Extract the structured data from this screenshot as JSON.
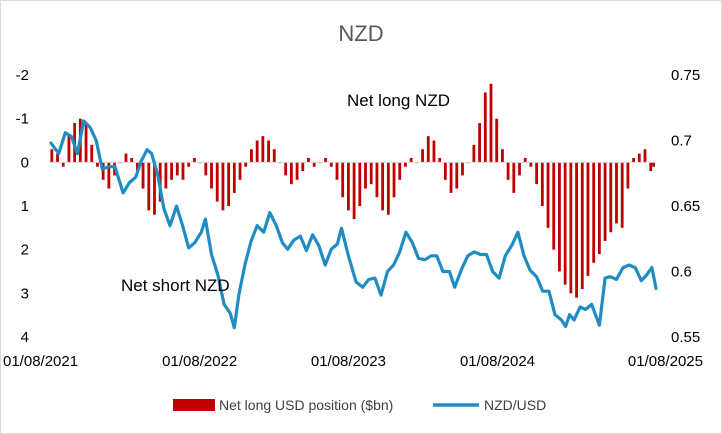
{
  "chart_data": {
    "type": "bar+line",
    "title": "NZD",
    "x_tick_labels": [
      "01/08/2021",
      "01/08/2022",
      "01/08/2023",
      "01/08/2024",
      "01/08/2025"
    ],
    "x_range": [
      "2021-08-01",
      "2025-08-25"
    ],
    "left_axis": {
      "ticks": [
        "-2",
        "-1",
        "0",
        "1",
        "2",
        "3",
        "4"
      ],
      "range": [
        -2,
        4
      ],
      "inverted": true
    },
    "right_axis": {
      "ticks": [
        "0.75",
        "0.7",
        "0.65",
        "0.6",
        "0.55"
      ],
      "range": [
        0.55,
        0.75
      ]
    },
    "annotations": [
      "Net long NZD",
      "Net short NZD"
    ],
    "colors": {
      "bars": "#C00000",
      "line": "#1F8DC1"
    },
    "legend_position": "bottom",
    "series": [
      {
        "name": "Net long USD position ($bn)",
        "type": "bar",
        "axis": "left",
        "points": [
          [
            "2021-08-03",
            -0.3
          ],
          [
            "2021-08-17",
            -0.2
          ],
          [
            "2021-08-31",
            0.1
          ],
          [
            "2021-09-14",
            -0.6
          ],
          [
            "2021-09-28",
            -0.9
          ],
          [
            "2021-10-12",
            -1.0
          ],
          [
            "2021-10-26",
            -0.9
          ],
          [
            "2021-11-09",
            -0.4
          ],
          [
            "2021-11-23",
            0.1
          ],
          [
            "2021-12-07",
            0.4
          ],
          [
            "2021-12-21",
            0.6
          ],
          [
            "2022-01-04",
            0.3
          ],
          [
            "2022-01-18",
            0.0
          ],
          [
            "2022-02-01",
            -0.2
          ],
          [
            "2022-02-15",
            -0.1
          ],
          [
            "2022-03-01",
            0.2
          ],
          [
            "2022-03-15",
            0.6
          ],
          [
            "2022-03-29",
            1.1
          ],
          [
            "2022-04-12",
            1.2
          ],
          [
            "2022-04-26",
            0.9
          ],
          [
            "2022-05-10",
            0.6
          ],
          [
            "2022-05-24",
            0.4
          ],
          [
            "2022-06-07",
            0.3
          ],
          [
            "2022-06-21",
            0.4
          ],
          [
            "2022-07-05",
            0.1
          ],
          [
            "2022-07-19",
            -0.1
          ],
          [
            "2022-08-02",
            0.0
          ],
          [
            "2022-08-16",
            0.3
          ],
          [
            "2022-08-30",
            0.6
          ],
          [
            "2022-09-13",
            0.9
          ],
          [
            "2022-09-27",
            1.1
          ],
          [
            "2022-10-11",
            1.0
          ],
          [
            "2022-10-25",
            0.7
          ],
          [
            "2022-11-08",
            0.4
          ],
          [
            "2022-11-22",
            0.1
          ],
          [
            "2022-12-06",
            -0.3
          ],
          [
            "2022-12-20",
            -0.5
          ],
          [
            "2023-01-03",
            -0.6
          ],
          [
            "2023-01-17",
            -0.5
          ],
          [
            "2023-01-31",
            -0.3
          ],
          [
            "2023-02-14",
            0.0
          ],
          [
            "2023-02-28",
            0.3
          ],
          [
            "2023-03-14",
            0.5
          ],
          [
            "2023-03-28",
            0.4
          ],
          [
            "2023-04-11",
            0.2
          ],
          [
            "2023-04-25",
            -0.1
          ],
          [
            "2023-05-09",
            0.1
          ],
          [
            "2023-05-23",
            0.0
          ],
          [
            "2023-06-06",
            -0.1
          ],
          [
            "2023-06-20",
            0.1
          ],
          [
            "2023-07-04",
            0.4
          ],
          [
            "2023-07-18",
            0.8
          ],
          [
            "2023-08-01",
            1.1
          ],
          [
            "2023-08-15",
            1.3
          ],
          [
            "2023-08-29",
            1.0
          ],
          [
            "2023-09-12",
            0.6
          ],
          [
            "2023-09-26",
            0.5
          ],
          [
            "2023-10-10",
            0.8
          ],
          [
            "2023-10-24",
            1.1
          ],
          [
            "2023-11-07",
            1.2
          ],
          [
            "2023-11-21",
            0.8
          ],
          [
            "2023-12-05",
            0.4
          ],
          [
            "2023-12-19",
            0.1
          ],
          [
            "2024-01-02",
            -0.1
          ],
          [
            "2024-01-16",
            0.0
          ],
          [
            "2024-01-30",
            -0.3
          ],
          [
            "2024-02-13",
            -0.6
          ],
          [
            "2024-02-27",
            -0.5
          ],
          [
            "2024-03-12",
            -0.1
          ],
          [
            "2024-03-26",
            0.4
          ],
          [
            "2024-04-09",
            0.7
          ],
          [
            "2024-04-23",
            0.6
          ],
          [
            "2024-05-07",
            0.3
          ],
          [
            "2024-05-21",
            0.0
          ],
          [
            "2024-06-04",
            -0.4
          ],
          [
            "2024-06-18",
            -0.9
          ],
          [
            "2024-07-02",
            -1.6
          ],
          [
            "2024-07-16",
            -1.8
          ],
          [
            "2024-07-30",
            -1.0
          ],
          [
            "2024-08-13",
            -0.3
          ],
          [
            "2024-08-27",
            0.4
          ],
          [
            "2024-09-10",
            0.7
          ],
          [
            "2024-09-24",
            0.3
          ],
          [
            "2024-10-08",
            -0.1
          ],
          [
            "2024-10-22",
            0.1
          ],
          [
            "2024-11-05",
            0.5
          ],
          [
            "2024-11-19",
            1.0
          ],
          [
            "2024-12-03",
            1.5
          ],
          [
            "2024-12-17",
            2.0
          ],
          [
            "2024-12-31",
            2.5
          ],
          [
            "2025-01-14",
            2.8
          ],
          [
            "2025-01-28",
            3.0
          ],
          [
            "2025-02-11",
            3.1
          ],
          [
            "2025-02-25",
            2.9
          ],
          [
            "2025-03-11",
            2.6
          ],
          [
            "2025-03-25",
            2.3
          ],
          [
            "2025-04-08",
            2.1
          ],
          [
            "2025-04-22",
            1.8
          ],
          [
            "2025-05-06",
            1.6
          ],
          [
            "2025-05-20",
            1.4
          ],
          [
            "2025-06-03",
            1.5
          ],
          [
            "2025-06-17",
            0.6
          ],
          [
            "2025-07-01",
            -0.1
          ],
          [
            "2025-07-15",
            -0.2
          ],
          [
            "2025-07-29",
            -0.3
          ],
          [
            "2025-08-12",
            0.2
          ],
          [
            "2025-08-19",
            0.1
          ]
        ]
      },
      {
        "name": "NZD/USD",
        "type": "line",
        "axis": "right",
        "points": [
          [
            "2021-08-01",
            0.698
          ],
          [
            "2021-08-20",
            0.69
          ],
          [
            "2021-09-05",
            0.706
          ],
          [
            "2021-09-20",
            0.703
          ],
          [
            "2021-10-05",
            0.69
          ],
          [
            "2021-10-20",
            0.715
          ],
          [
            "2021-11-05",
            0.71
          ],
          [
            "2021-11-20",
            0.7
          ],
          [
            "2021-12-05",
            0.678
          ],
          [
            "2021-12-20",
            0.68
          ],
          [
            "2022-01-05",
            0.68
          ],
          [
            "2022-01-25",
            0.66
          ],
          [
            "2022-02-10",
            0.668
          ],
          [
            "2022-02-25",
            0.672
          ],
          [
            "2022-03-10",
            0.684
          ],
          [
            "2022-03-25",
            0.693
          ],
          [
            "2022-04-05",
            0.69
          ],
          [
            "2022-04-20",
            0.674
          ],
          [
            "2022-05-05",
            0.648
          ],
          [
            "2022-05-20",
            0.635
          ],
          [
            "2022-06-05",
            0.65
          ],
          [
            "2022-06-20",
            0.635
          ],
          [
            "2022-07-05",
            0.618
          ],
          [
            "2022-07-20",
            0.622
          ],
          [
            "2022-08-05",
            0.63
          ],
          [
            "2022-08-15",
            0.64
          ],
          [
            "2022-08-30",
            0.613
          ],
          [
            "2022-09-15",
            0.597
          ],
          [
            "2022-09-30",
            0.575
          ],
          [
            "2022-10-15",
            0.568
          ],
          [
            "2022-10-25",
            0.557
          ],
          [
            "2022-11-05",
            0.582
          ],
          [
            "2022-11-20",
            0.605
          ],
          [
            "2022-12-05",
            0.623
          ],
          [
            "2022-12-20",
            0.635
          ],
          [
            "2023-01-05",
            0.63
          ],
          [
            "2023-01-20",
            0.645
          ],
          [
            "2023-02-05",
            0.635
          ],
          [
            "2023-02-20",
            0.622
          ],
          [
            "2023-03-05",
            0.617
          ],
          [
            "2023-03-20",
            0.624
          ],
          [
            "2023-04-05",
            0.627
          ],
          [
            "2023-04-20",
            0.616
          ],
          [
            "2023-05-05",
            0.628
          ],
          [
            "2023-05-20",
            0.62
          ],
          [
            "2023-06-05",
            0.605
          ],
          [
            "2023-06-20",
            0.617
          ],
          [
            "2023-07-05",
            0.621
          ],
          [
            "2023-07-15",
            0.633
          ],
          [
            "2023-08-01",
            0.612
          ],
          [
            "2023-08-20",
            0.592
          ],
          [
            "2023-09-05",
            0.588
          ],
          [
            "2023-09-20",
            0.594
          ],
          [
            "2023-10-05",
            0.595
          ],
          [
            "2023-10-20",
            0.582
          ],
          [
            "2023-11-05",
            0.6
          ],
          [
            "2023-11-20",
            0.605
          ],
          [
            "2023-12-05",
            0.615
          ],
          [
            "2023-12-20",
            0.63
          ],
          [
            "2024-01-05",
            0.622
          ],
          [
            "2024-01-20",
            0.61
          ],
          [
            "2024-02-05",
            0.609
          ],
          [
            "2024-02-20",
            0.612
          ],
          [
            "2024-03-05",
            0.612
          ],
          [
            "2024-03-20",
            0.6
          ],
          [
            "2024-04-05",
            0.6
          ],
          [
            "2024-04-18",
            0.588
          ],
          [
            "2024-05-05",
            0.602
          ],
          [
            "2024-05-20",
            0.612
          ],
          [
            "2024-06-05",
            0.615
          ],
          [
            "2024-06-20",
            0.613
          ],
          [
            "2024-07-05",
            0.613
          ],
          [
            "2024-07-20",
            0.6
          ],
          [
            "2024-08-05",
            0.595
          ],
          [
            "2024-08-20",
            0.612
          ],
          [
            "2024-09-05",
            0.62
          ],
          [
            "2024-09-20",
            0.63
          ],
          [
            "2024-10-05",
            0.612
          ],
          [
            "2024-10-20",
            0.601
          ],
          [
            "2024-11-05",
            0.596
          ],
          [
            "2024-11-20",
            0.585
          ],
          [
            "2024-12-05",
            0.585
          ],
          [
            "2024-12-20",
            0.567
          ],
          [
            "2025-01-05",
            0.563
          ],
          [
            "2025-01-15",
            0.558
          ],
          [
            "2025-01-25",
            0.567
          ],
          [
            "2025-02-05",
            0.563
          ],
          [
            "2025-02-20",
            0.573
          ],
          [
            "2025-03-05",
            0.571
          ],
          [
            "2025-03-20",
            0.575
          ],
          [
            "2025-04-08",
            0.559
          ],
          [
            "2025-04-22",
            0.595
          ],
          [
            "2025-05-05",
            0.596
          ],
          [
            "2025-05-20",
            0.594
          ],
          [
            "2025-06-05",
            0.603
          ],
          [
            "2025-06-20",
            0.605
          ],
          [
            "2025-07-05",
            0.603
          ],
          [
            "2025-07-20",
            0.593
          ],
          [
            "2025-08-01",
            0.597
          ],
          [
            "2025-08-15",
            0.603
          ],
          [
            "2025-08-25",
            0.587
          ]
        ]
      }
    ]
  }
}
